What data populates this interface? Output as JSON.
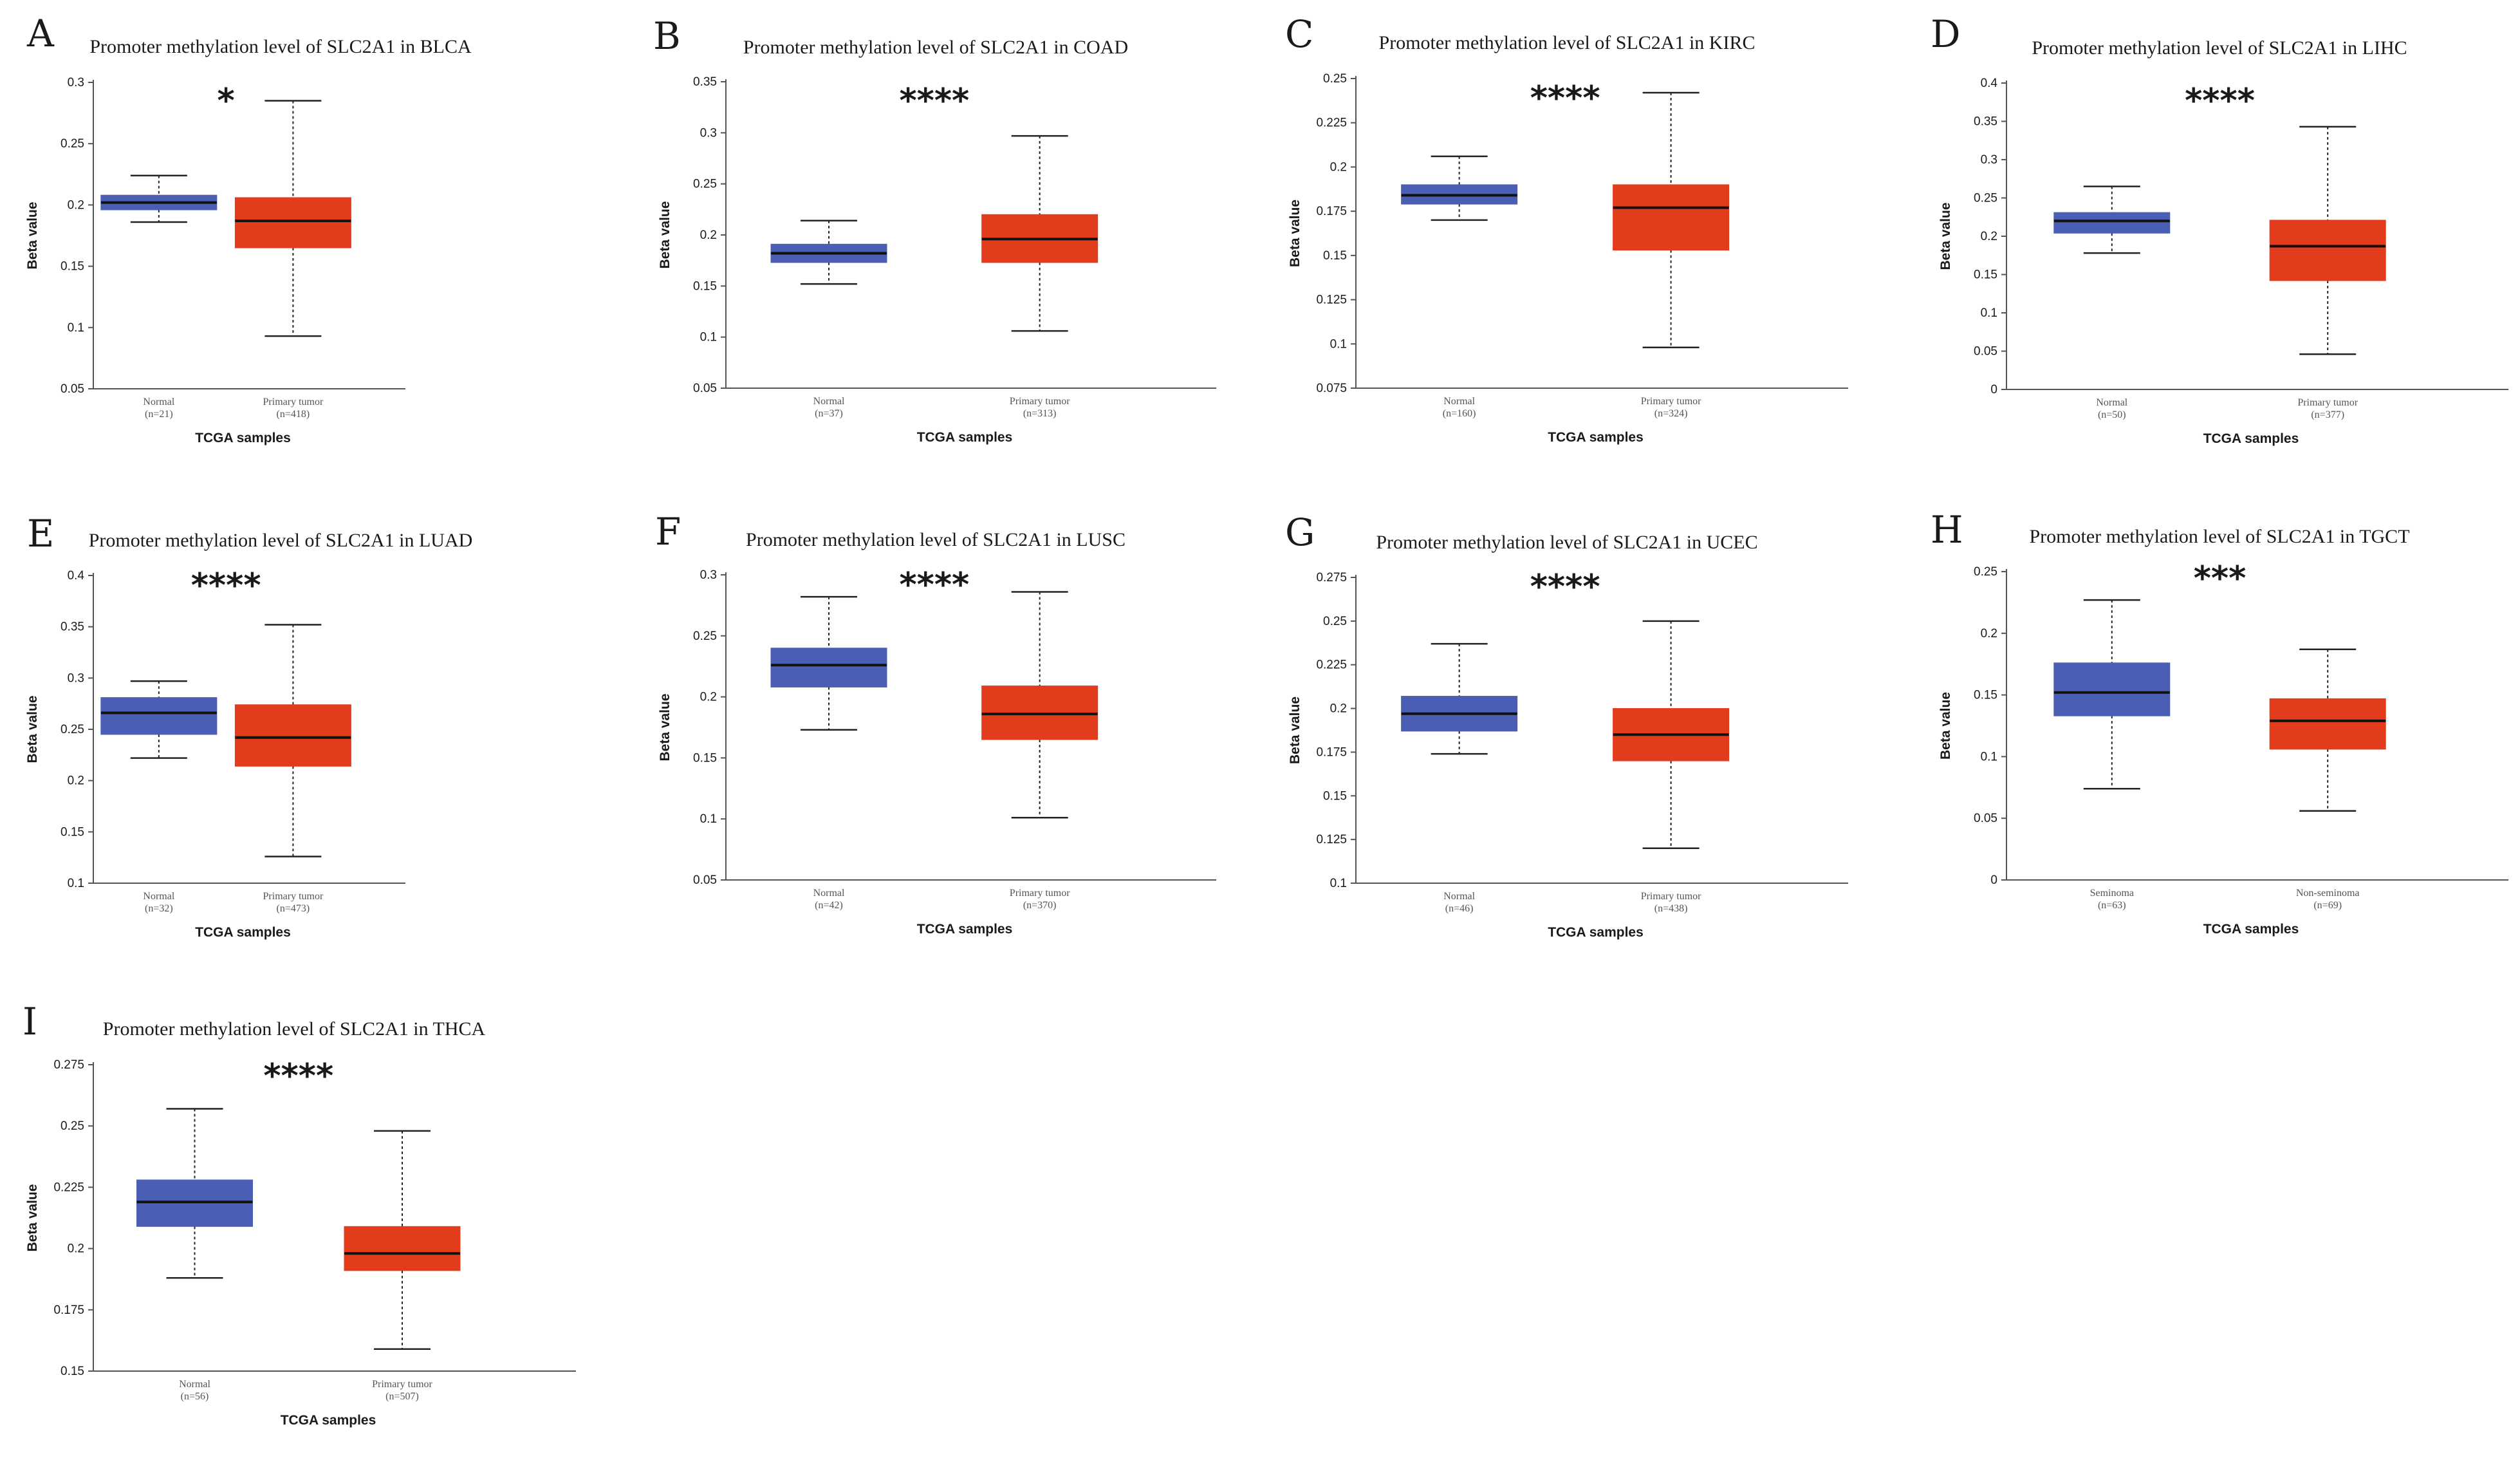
{
  "figure": {
    "chart_data": [
      {
        "type": "box",
        "panel_label": "A",
        "title": "Promoter methylation level of SLC2A1 in BLCA",
        "significance": "*",
        "xlabel": "TCGA samples",
        "ylabel": "Beta value",
        "ylim": [
          0.05,
          0.3
        ],
        "yticks": [
          "0.05",
          "0.1",
          "0.15",
          "0.2",
          "0.25",
          "0.3"
        ],
        "groups": [
          {
            "name": "Normal",
            "n_label": "(n=21)",
            "color": "#4a5fb3",
            "min": 0.186,
            "q1": 0.196,
            "median": 0.202,
            "q3": 0.208,
            "max": 0.224
          },
          {
            "name": "Primary tumor",
            "n_label": "(n=418)",
            "color": "#e33c1c",
            "min": 0.093,
            "q1": 0.165,
            "median": 0.187,
            "q3": 0.206,
            "max": 0.285
          }
        ]
      },
      {
        "type": "box",
        "panel_label": "B",
        "title": "Promoter methylation level of SLC2A1 in COAD",
        "significance": "****",
        "xlabel": "TCGA samples",
        "ylabel": "Beta value",
        "ylim": [
          0.05,
          0.35
        ],
        "yticks": [
          "0.05",
          "0.1",
          "0.15",
          "0.2",
          "0.25",
          "0.3",
          "0.35"
        ],
        "groups": [
          {
            "name": "Normal",
            "n_label": "(n=37)",
            "color": "#4a5fb3",
            "min": 0.152,
            "q1": 0.173,
            "median": 0.182,
            "q3": 0.191,
            "max": 0.214
          },
          {
            "name": "Primary tumor",
            "n_label": "(n=313)",
            "color": "#e33c1c",
            "min": 0.106,
            "q1": 0.173,
            "median": 0.196,
            "q3": 0.22,
            "max": 0.297
          }
        ]
      },
      {
        "type": "box",
        "panel_label": "C",
        "title": "Promoter methylation level of SLC2A1 in KIRC",
        "significance": "****",
        "xlabel": "TCGA samples",
        "ylabel": "Beta value",
        "ylim": [
          0.075,
          0.25
        ],
        "yticks": [
          "0.075",
          "0.1",
          "0.125",
          "0.15",
          "0.175",
          "0.2",
          "0.225",
          "0.25"
        ],
        "groups": [
          {
            "name": "Normal",
            "n_label": "(n=160)",
            "color": "#4a5fb3",
            "min": 0.17,
            "q1": 0.179,
            "median": 0.184,
            "q3": 0.19,
            "max": 0.206
          },
          {
            "name": "Primary tumor",
            "n_label": "(n=324)",
            "color": "#e33c1c",
            "min": 0.098,
            "q1": 0.153,
            "median": 0.177,
            "q3": 0.19,
            "max": 0.242
          }
        ]
      },
      {
        "type": "box",
        "panel_label": "D",
        "title": "Promoter methylation level of SLC2A1 in LIHC",
        "significance": "****",
        "xlabel": "TCGA samples",
        "ylabel": "Beta value",
        "ylim": [
          0,
          0.4
        ],
        "yticks": [
          "0",
          "0.05",
          "0.1",
          "0.15",
          "0.2",
          "0.25",
          "0.3",
          "0.35",
          "0.4"
        ],
        "groups": [
          {
            "name": "Normal",
            "n_label": "(n=50)",
            "color": "#4a5fb3",
            "min": 0.178,
            "q1": 0.204,
            "median": 0.22,
            "q3": 0.231,
            "max": 0.265
          },
          {
            "name": "Primary tumor",
            "n_label": "(n=377)",
            "color": "#e33c1c",
            "min": 0.046,
            "q1": 0.142,
            "median": 0.187,
            "q3": 0.221,
            "max": 0.343
          }
        ]
      },
      {
        "type": "box",
        "panel_label": "E",
        "title": "Promoter methylation level of SLC2A1 in LUAD",
        "significance": "****",
        "xlabel": "TCGA samples",
        "ylabel": "Beta value",
        "ylim": [
          0.1,
          0.4
        ],
        "yticks": [
          "0.1",
          "0.15",
          "0.2",
          "0.25",
          "0.3",
          "0.35",
          "0.4"
        ],
        "groups": [
          {
            "name": "Normal",
            "n_label": "(n=32)",
            "color": "#4a5fb3",
            "min": 0.222,
            "q1": 0.245,
            "median": 0.266,
            "q3": 0.281,
            "max": 0.297
          },
          {
            "name": "Primary tumor",
            "n_label": "(n=473)",
            "color": "#e33c1c",
            "min": 0.126,
            "q1": 0.214,
            "median": 0.242,
            "q3": 0.274,
            "max": 0.352
          }
        ]
      },
      {
        "type": "box",
        "panel_label": "F",
        "title": "Promoter methylation level of SLC2A1 in LUSC",
        "significance": "****",
        "xlabel": "TCGA samples",
        "ylabel": "Beta value",
        "ylim": [
          0.05,
          0.3
        ],
        "yticks": [
          "0.05",
          "0.1",
          "0.15",
          "0.2",
          "0.25",
          "0.3"
        ],
        "groups": [
          {
            "name": "Normal",
            "n_label": "(n=42)",
            "color": "#4a5fb3",
            "min": 0.173,
            "q1": 0.208,
            "median": 0.226,
            "q3": 0.24,
            "max": 0.282
          },
          {
            "name": "Primary tumor",
            "n_label": "(n=370)",
            "color": "#e33c1c",
            "min": 0.101,
            "q1": 0.165,
            "median": 0.186,
            "q3": 0.209,
            "max": 0.286
          }
        ]
      },
      {
        "type": "box",
        "panel_label": "G",
        "title": "Promoter methylation level of SLC2A1 in UCEC",
        "significance": "****",
        "xlabel": "TCGA samples",
        "ylabel": "Beta value",
        "ylim": [
          0.1,
          0.275
        ],
        "yticks": [
          "0.1",
          "0.125",
          "0.15",
          "0.175",
          "0.2",
          "0.225",
          "0.25",
          "0.275"
        ],
        "groups": [
          {
            "name": "Normal",
            "n_label": "(n=46)",
            "color": "#4a5fb3",
            "min": 0.174,
            "q1": 0.187,
            "median": 0.197,
            "q3": 0.207,
            "max": 0.237
          },
          {
            "name": "Primary tumor",
            "n_label": "(n=438)",
            "color": "#e33c1c",
            "min": 0.12,
            "q1": 0.17,
            "median": 0.185,
            "q3": 0.2,
            "max": 0.25
          }
        ]
      },
      {
        "type": "box",
        "panel_label": "H",
        "title": "Promoter methylation level of SLC2A1 in TGCT",
        "significance": "***",
        "xlabel": "TCGA samples",
        "ylabel": "Beta value",
        "ylim": [
          0,
          0.25
        ],
        "yticks": [
          "0",
          "0.05",
          "0.1",
          "0.15",
          "0.2",
          "0.25"
        ],
        "groups": [
          {
            "name": "Seminoma",
            "n_label": "(n=63)",
            "color": "#4a5fb3",
            "min": 0.074,
            "q1": 0.133,
            "median": 0.152,
            "q3": 0.176,
            "max": 0.227
          },
          {
            "name": "Non-seminoma",
            "n_label": "(n=69)",
            "color": "#e33c1c",
            "min": 0.056,
            "q1": 0.106,
            "median": 0.129,
            "q3": 0.147,
            "max": 0.187
          }
        ]
      },
      {
        "type": "box",
        "panel_label": "I",
        "title": "Promoter methylation level of SLC2A1 in THCA",
        "significance": "****",
        "xlabel": "TCGA samples",
        "ylabel": "Beta value",
        "ylim": [
          0.15,
          0.275
        ],
        "yticks": [
          "0.15",
          "0.175",
          "0.2",
          "0.225",
          "0.25",
          "0.275"
        ],
        "groups": [
          {
            "name": "Normal",
            "n_label": "(n=56)",
            "color": "#4a5fb3",
            "min": 0.188,
            "q1": 0.209,
            "median": 0.219,
            "q3": 0.228,
            "max": 0.257
          },
          {
            "name": "Primary tumor",
            "n_label": "(n=507)",
            "color": "#e33c1c",
            "min": 0.159,
            "q1": 0.191,
            "median": 0.198,
            "q3": 0.209,
            "max": 0.248
          }
        ]
      }
    ]
  }
}
